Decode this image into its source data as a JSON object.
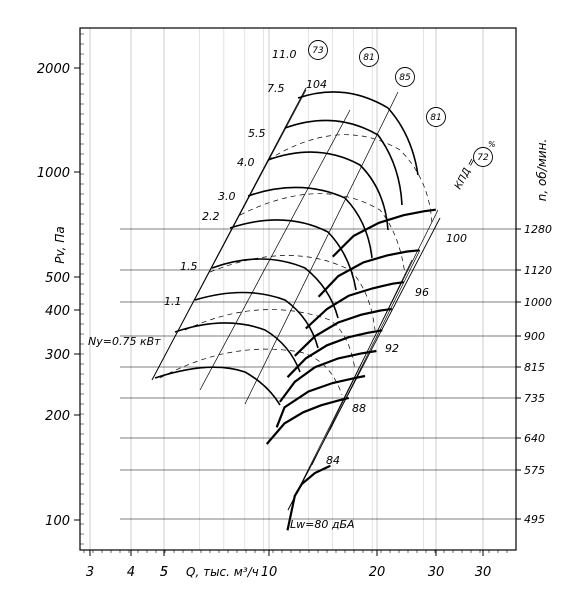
{
  "chart_data": {
    "type": "line",
    "title": "",
    "xlabel": "Q, тыс. м³/ч",
    "ylabel": "Pv, Па",
    "y2label": "n, об/мин.",
    "x_ticks": [
      "3",
      "4",
      "5",
      "5",
      "10",
      "20",
      "30",
      "30"
    ],
    "y_ticks": [
      {
        "label": "2000",
        "value": 2000
      },
      {
        "label": "1000",
        "value": 1000
      },
      {
        "label": "500",
        "value": 500
      },
      {
        "label": "400",
        "value": 400
      },
      {
        "label": "300",
        "value": 300
      },
      {
        "label": "200",
        "value": 200
      },
      {
        "label": "100",
        "value": 100
      }
    ],
    "y2_ticks": [
      "1280",
      "1120",
      "1000",
      "900",
      "815",
      "735",
      "640",
      "575",
      "495"
    ],
    "power_labels": [
      "Ny=0.75 кВт",
      "1.1",
      "1.5",
      "2.2",
      "3.0",
      "4.0",
      "5.5",
      "7.5",
      "11.0"
    ],
    "noise_labels": [
      "Lw=80 дБА",
      "84",
      "88",
      "92",
      "96",
      "100",
      "104"
    ],
    "efficiency_labels": [
      "73",
      "81",
      "85",
      "81",
      "72"
    ],
    "efficiency_caption": "КПД =",
    "efficiency_unit": "%",
    "series": [
      {
        "name": "495",
        "points": [
          [
            10.5,
            100
          ],
          [
            11,
            125
          ],
          [
            11.5,
            135
          ],
          [
            12.5,
            145
          ],
          [
            13.8,
            152
          ]
        ]
      },
      {
        "name": "575",
        "points": [
          [
            9.2,
            175
          ],
          [
            10.3,
            200
          ],
          [
            11.6,
            215
          ],
          [
            13,
            225
          ],
          [
            14.5,
            232
          ],
          [
            15.5,
            236
          ]
        ]
      },
      {
        "name": "640",
        "points": [
          [
            9.8,
            195
          ],
          [
            10.3,
            222
          ],
          [
            12,
            246
          ],
          [
            14,
            260
          ],
          [
            16,
            268
          ],
          [
            17.2,
            272
          ]
        ]
      },
      {
        "name": "735",
        "points": [
          [
            10,
            230
          ],
          [
            11,
            262
          ],
          [
            12.5,
            288
          ],
          [
            14.5,
            305
          ],
          [
            16.8,
            315
          ],
          [
            18.5,
            320
          ]
        ]
      },
      {
        "name": "815",
        "points": [
          [
            10.5,
            270
          ],
          [
            11.8,
            305
          ],
          [
            13.5,
            332
          ],
          [
            15.5,
            350
          ],
          [
            17.5,
            360
          ],
          [
            19.2,
            366
          ]
        ]
      },
      {
        "name": "900",
        "points": [
          [
            11,
            310
          ],
          [
            12.5,
            352
          ],
          [
            14.5,
            385
          ],
          [
            16.8,
            405
          ],
          [
            19,
            416
          ],
          [
            20.4,
            420
          ]
        ]
      },
      {
        "name": "1000",
        "points": [
          [
            11.8,
            370
          ],
          [
            13.5,
            420
          ],
          [
            15.5,
            458
          ],
          [
            18,
            480
          ],
          [
            20.5,
            495
          ],
          [
            22,
            500
          ]
        ]
      },
      {
        "name": "1120",
        "points": [
          [
            12.8,
            455
          ],
          [
            14.5,
            520
          ],
          [
            17,
            568
          ],
          [
            19.8,
            595
          ],
          [
            22.5,
            610
          ],
          [
            24.3,
            615
          ]
        ]
      },
      {
        "name": "1280",
        "points": [
          [
            14,
            590
          ],
          [
            16,
            675
          ],
          [
            18.8,
            735
          ],
          [
            22,
            772
          ],
          [
            25,
            792
          ],
          [
            27,
            800
          ]
        ]
      }
    ],
    "x_scale": "log",
    "y_scale": "log",
    "xlim": [
      2.8,
      45
    ],
    "ylim": [
      88,
      2600
    ],
    "grid": true
  }
}
